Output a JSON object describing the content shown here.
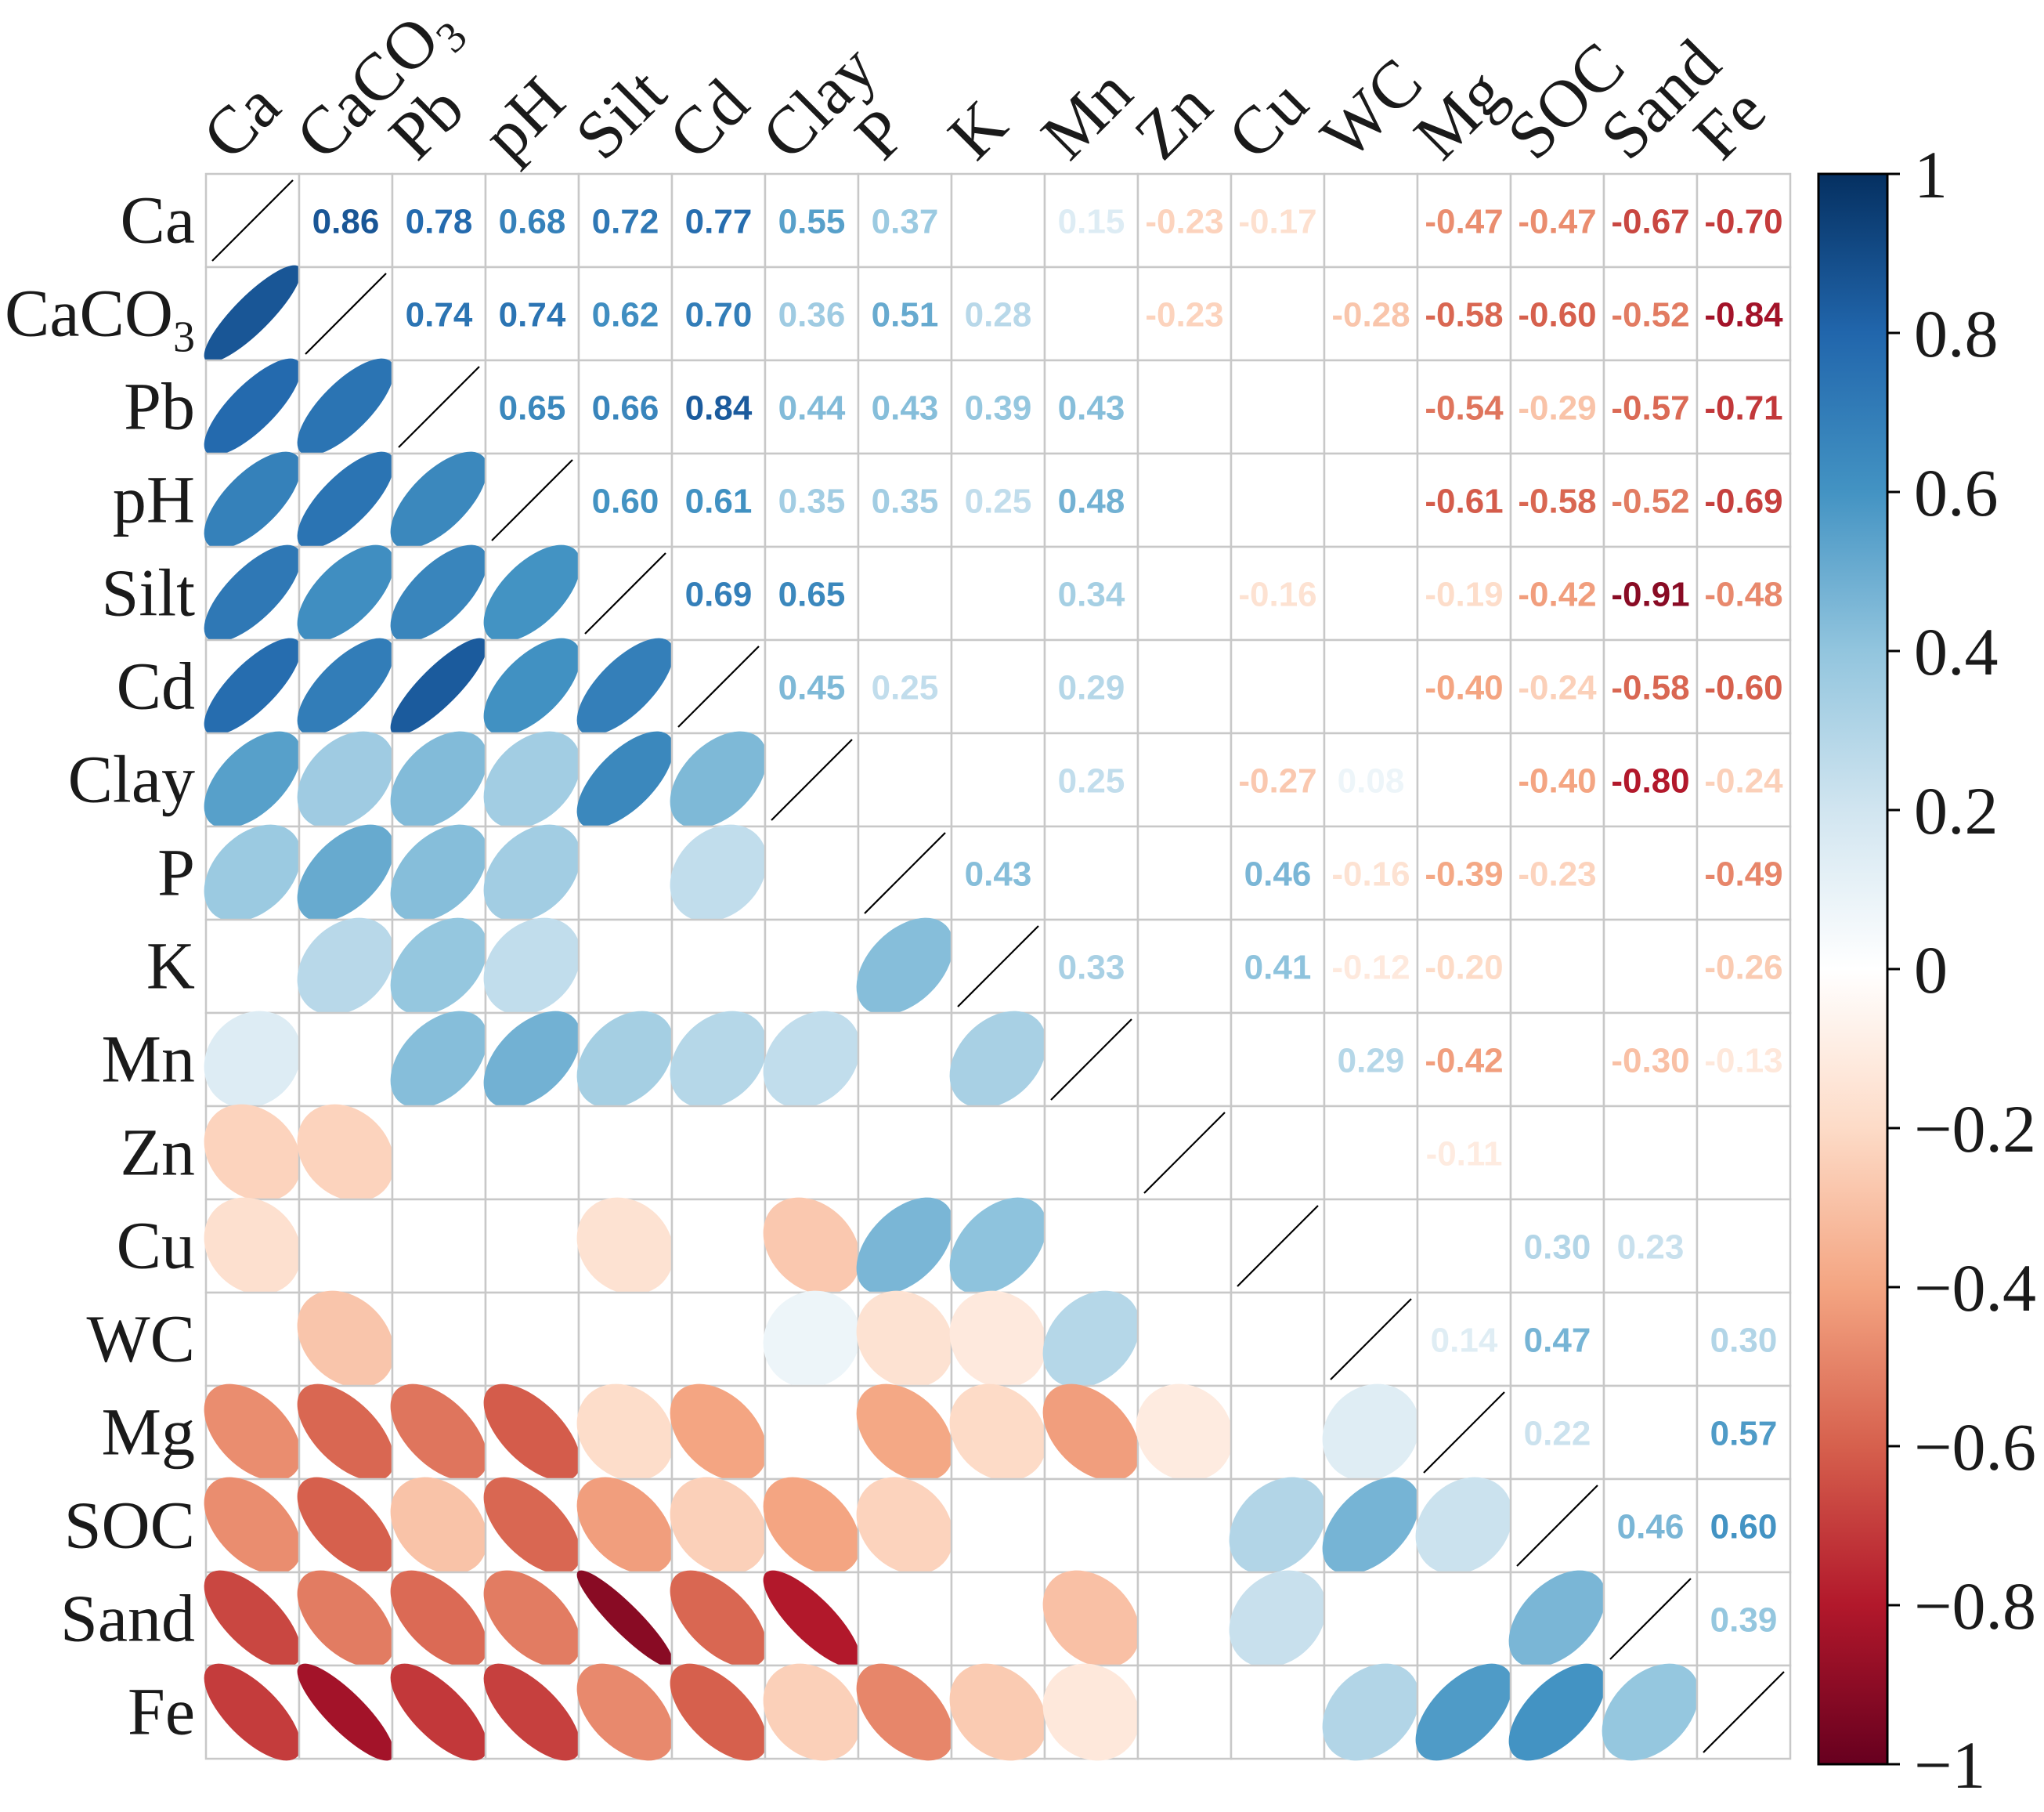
{
  "chart_data": {
    "type": "heatmap",
    "variables": [
      "Ca",
      "CaCO3",
      "Pb",
      "pH",
      "Silt",
      "Cd",
      "Clay",
      "P",
      "K",
      "Mn",
      "Zn",
      "Cu",
      "WC",
      "Mg",
      "SOC",
      "Sand",
      "Fe"
    ],
    "display_labels": [
      {
        "main": "Ca",
        "sub": ""
      },
      {
        "main": "CaCO",
        "sub": "3"
      },
      {
        "main": "Pb",
        "sub": ""
      },
      {
        "main": "pH",
        "sub": ""
      },
      {
        "main": "Silt",
        "sub": ""
      },
      {
        "main": "Cd",
        "sub": ""
      },
      {
        "main": "Clay",
        "sub": ""
      },
      {
        "main": "P",
        "sub": ""
      },
      {
        "main": "K",
        "sub": ""
      },
      {
        "main": "Mn",
        "sub": ""
      },
      {
        "main": "Zn",
        "sub": ""
      },
      {
        "main": "Cu",
        "sub": ""
      },
      {
        "main": "WC",
        "sub": ""
      },
      {
        "main": "Mg",
        "sub": ""
      },
      {
        "main": "SOC",
        "sub": ""
      },
      {
        "main": "Sand",
        "sub": ""
      },
      {
        "main": "Fe",
        "sub": ""
      }
    ],
    "matrix": [
      [
        1,
        0.86,
        0.78,
        0.68,
        0.72,
        0.77,
        0.55,
        0.37,
        null,
        0.15,
        -0.23,
        -0.17,
        null,
        -0.47,
        -0.47,
        -0.67,
        -0.7
      ],
      [
        0.86,
        1,
        0.74,
        0.74,
        0.62,
        0.7,
        0.36,
        0.51,
        0.28,
        null,
        -0.23,
        null,
        -0.28,
        -0.58,
        -0.6,
        -0.52,
        -0.84
      ],
      [
        0.78,
        0.74,
        1,
        0.65,
        0.66,
        0.84,
        0.44,
        0.43,
        0.39,
        0.43,
        null,
        null,
        null,
        -0.54,
        -0.29,
        -0.57,
        -0.71
      ],
      [
        0.68,
        0.74,
        0.65,
        1,
        0.6,
        0.61,
        0.35,
        0.35,
        0.25,
        0.48,
        null,
        null,
        null,
        -0.61,
        -0.58,
        -0.52,
        -0.69
      ],
      [
        0.72,
        0.62,
        0.66,
        0.6,
        1,
        0.69,
        0.65,
        null,
        null,
        0.34,
        null,
        -0.16,
        null,
        -0.19,
        -0.42,
        -0.91,
        -0.48
      ],
      [
        0.77,
        0.7,
        0.84,
        0.61,
        0.69,
        1,
        0.45,
        0.25,
        null,
        0.29,
        null,
        null,
        null,
        -0.4,
        -0.24,
        -0.58,
        -0.6
      ],
      [
        0.55,
        0.36,
        0.44,
        0.35,
        0.65,
        0.45,
        1,
        null,
        null,
        0.25,
        null,
        -0.27,
        0.08,
        null,
        -0.4,
        -0.8,
        -0.24
      ],
      [
        0.37,
        0.51,
        0.43,
        0.35,
        null,
        0.25,
        null,
        1,
        0.43,
        null,
        null,
        0.46,
        -0.16,
        -0.39,
        -0.23,
        null,
        -0.49
      ],
      [
        null,
        0.28,
        0.39,
        0.25,
        null,
        null,
        null,
        0.43,
        1,
        0.33,
        null,
        0.41,
        -0.12,
        -0.2,
        null,
        null,
        -0.26
      ],
      [
        0.15,
        null,
        0.43,
        0.48,
        0.34,
        0.29,
        0.25,
        null,
        0.33,
        1,
        null,
        null,
        0.29,
        -0.42,
        null,
        -0.3,
        -0.13
      ],
      [
        -0.23,
        -0.23,
        null,
        null,
        null,
        null,
        null,
        null,
        null,
        null,
        1,
        null,
        null,
        -0.11,
        null,
        null,
        null
      ],
      [
        -0.17,
        null,
        null,
        null,
        -0.16,
        null,
        -0.27,
        0.46,
        0.41,
        null,
        null,
        1,
        null,
        null,
        0.3,
        0.23,
        null
      ],
      [
        null,
        -0.28,
        null,
        null,
        null,
        null,
        0.08,
        -0.16,
        -0.12,
        0.29,
        null,
        null,
        1,
        0.14,
        0.47,
        null,
        0.3
      ],
      [
        -0.47,
        -0.58,
        -0.54,
        -0.61,
        -0.19,
        -0.4,
        null,
        -0.39,
        -0.2,
        -0.42,
        -0.11,
        null,
        0.14,
        1,
        0.22,
        null,
        0.57
      ],
      [
        -0.47,
        -0.6,
        -0.29,
        -0.58,
        -0.42,
        -0.24,
        -0.4,
        -0.23,
        null,
        null,
        null,
        0.3,
        0.47,
        0.22,
        1,
        0.46,
        0.6
      ],
      [
        -0.67,
        -0.52,
        -0.57,
        -0.52,
        -0.91,
        -0.58,
        -0.8,
        null,
        null,
        -0.3,
        null,
        0.23,
        null,
        null,
        0.46,
        1,
        0.39
      ],
      [
        -0.7,
        -0.84,
        -0.71,
        -0.69,
        -0.48,
        -0.6,
        -0.24,
        -0.49,
        -0.26,
        -0.13,
        null,
        null,
        0.3,
        0.57,
        0.6,
        0.39,
        1
      ]
    ],
    "upper_triangle": "numbers",
    "lower_triangle": "ellipses",
    "diagonal": "line",
    "colorbar": {
      "range": [
        -1,
        1
      ],
      "ticks": [
        1,
        0.8,
        0.6,
        0.4,
        0.2,
        0,
        -0.2,
        -0.4,
        -0.6,
        -0.8,
        -1
      ],
      "tick_labels": [
        "1",
        "0.8",
        "0.6",
        "0.4",
        "0.2",
        "0",
        "−0.2",
        "−0.4",
        "−0.6",
        "−0.8",
        "−1"
      ]
    },
    "title": "",
    "xlabel": "",
    "ylabel": "",
    "grid": true
  },
  "colors": {
    "palette": [
      "#67001f",
      "#b2182b",
      "#d6604d",
      "#f4a582",
      "#fddbc7",
      "#ffffff",
      "#d1e5f0",
      "#92c5de",
      "#4393c3",
      "#2166ac",
      "#053061"
    ],
    "grid": "#c8c8c8",
    "diagonal": "#000000",
    "text": "#1a1a1a"
  }
}
